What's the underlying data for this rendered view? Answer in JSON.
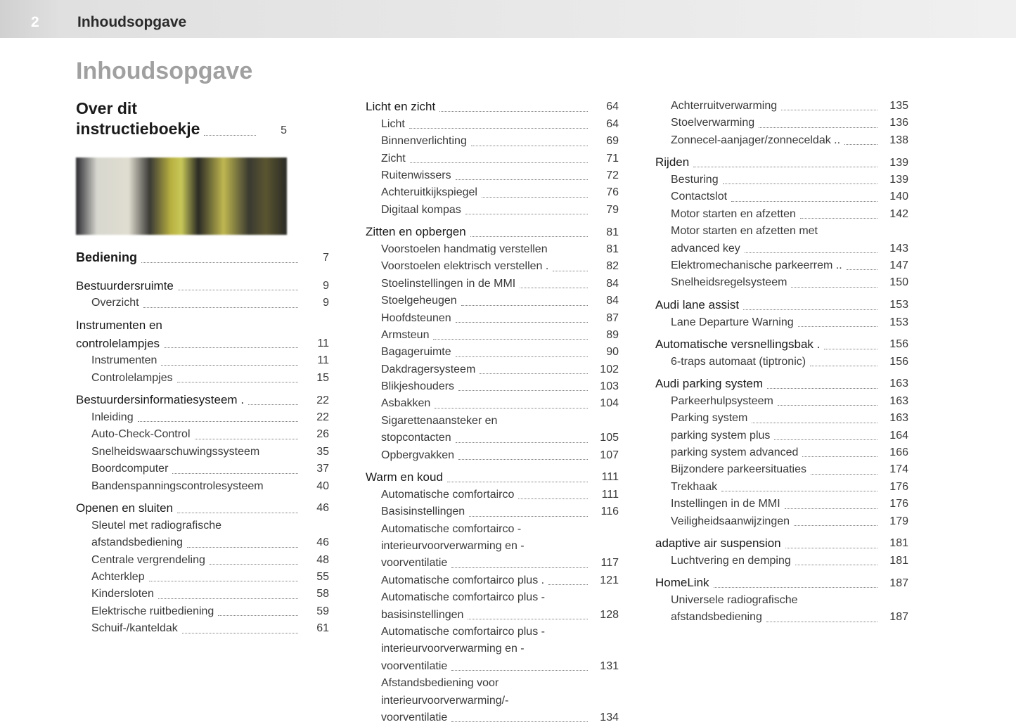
{
  "header": {
    "page_number": "2",
    "running_title": "Inhoudsopgave"
  },
  "main_title": "Inhoudsopgave",
  "col1": {
    "big_section": {
      "label_l1": "Over dit",
      "label_l2": "instructieboekje",
      "page": "5"
    },
    "sec2": {
      "label": "Bediening",
      "page": "7"
    },
    "entries2": [
      {
        "label": "Bestuurdersruimte",
        "page": "9",
        "bold": true
      },
      {
        "label": "Overzicht",
        "page": "9",
        "indent": true
      },
      {
        "label": "Instrumenten en",
        "wrap": true,
        "bold": true
      },
      {
        "label": "controlelampjes",
        "page": "11",
        "bold": true
      },
      {
        "label": "Instrumenten",
        "page": "11",
        "indent": true
      },
      {
        "label": "Controlelampjes",
        "page": "15",
        "indent": true
      },
      {
        "label": "Bestuurdersinformatiesysteem",
        "page": "22",
        "bold": true,
        "suffix": "."
      },
      {
        "label": "Inleiding",
        "page": "22",
        "indent": true
      },
      {
        "label": "Auto-Check-Control",
        "page": "26",
        "indent": true
      },
      {
        "label": "Snelheidswaarschuwingssysteem",
        "page": "35",
        "indent": true,
        "nodots": true
      },
      {
        "label": "Boordcomputer",
        "page": "37",
        "indent": true
      },
      {
        "label": "Bandenspanningscontrolesysteem",
        "page": "40",
        "indent": true,
        "nodots": true
      },
      {
        "label": "Openen en sluiten",
        "page": "46",
        "bold": true
      },
      {
        "label": "Sleutel met radiografische",
        "wrap": true,
        "indent": true
      },
      {
        "label": "afstandsbediening",
        "page": "46",
        "indent": true
      },
      {
        "label": "Centrale vergrendeling",
        "page": "48",
        "indent": true
      },
      {
        "label": "Achterklep",
        "page": "55",
        "indent": true
      },
      {
        "label": "Kindersloten",
        "page": "58",
        "indent": true
      },
      {
        "label": "Elektrische ruitbediening",
        "page": "59",
        "indent": true
      },
      {
        "label": "Schuif-/kanteldak",
        "page": "61",
        "indent": true
      }
    ]
  },
  "col2": {
    "entries": [
      {
        "label": "Licht en zicht",
        "page": "64",
        "bold": true
      },
      {
        "label": "Licht",
        "page": "64",
        "indent": true
      },
      {
        "label": "Binnenverlichting",
        "page": "69",
        "indent": true
      },
      {
        "label": "Zicht",
        "page": "71",
        "indent": true
      },
      {
        "label": "Ruitenwissers",
        "page": "72",
        "indent": true
      },
      {
        "label": "Achteruitkijkspiegel",
        "page": "76",
        "indent": true
      },
      {
        "label": "Digitaal kompas",
        "page": "79",
        "indent": true
      },
      {
        "label": "Zitten en opbergen",
        "page": "81",
        "bold": true
      },
      {
        "label": "Voorstoelen handmatig verstellen",
        "page": "81",
        "indent": true,
        "nodots": true
      },
      {
        "label": "Voorstoelen elektrisch verstellen",
        "page": "82",
        "indent": true,
        "suffix": "."
      },
      {
        "label": "Stoelinstellingen in de MMI",
        "page": "84",
        "indent": true
      },
      {
        "label": "Stoelgeheugen",
        "page": "84",
        "indent": true
      },
      {
        "label": "Hoofdsteunen",
        "page": "87",
        "indent": true
      },
      {
        "label": "Armsteun",
        "page": "89",
        "indent": true
      },
      {
        "label": "Bagageruimte",
        "page": "90",
        "indent": true
      },
      {
        "label": "Dakdragersysteem",
        "page": "102",
        "indent": true
      },
      {
        "label": "Blikjeshouders",
        "page": "103",
        "indent": true
      },
      {
        "label": "Asbakken",
        "page": "104",
        "indent": true
      },
      {
        "label": "Sigarettenaansteker en",
        "wrap": true,
        "indent": true
      },
      {
        "label": "stopcontacten",
        "page": "105",
        "indent": true
      },
      {
        "label": "Opbergvakken",
        "page": "107",
        "indent": true
      },
      {
        "label": "Warm en koud",
        "page": "111",
        "bold": true
      },
      {
        "label": "Automatische comfortairco",
        "page": "111",
        "indent": true
      },
      {
        "label": "Basisinstellingen",
        "page": "116",
        "indent": true
      },
      {
        "label": "Automatische comfortairco -",
        "wrap": true,
        "indent": true
      },
      {
        "label": "interieurvoorverwarming en -",
        "wrap": true,
        "indent": true
      },
      {
        "label": "voorventilatie",
        "page": "117",
        "indent": true
      },
      {
        "label": "Automatische comfortairco plus",
        "page": "121",
        "indent": true,
        "suffix": "."
      },
      {
        "label": "Automatische comfortairco plus -",
        "wrap": true,
        "indent": true
      },
      {
        "label": "basisinstellingen",
        "page": "128",
        "indent": true
      },
      {
        "label": "Automatische comfortairco plus -",
        "wrap": true,
        "indent": true
      },
      {
        "label": "interieurvoorverwarming en -",
        "wrap": true,
        "indent": true
      },
      {
        "label": "voorventilatie",
        "page": "131",
        "indent": true
      },
      {
        "label": "Afstandsbediening voor",
        "wrap": true,
        "indent": true
      },
      {
        "label": "interieurvoorverwarming/-",
        "wrap": true,
        "indent": true
      },
      {
        "label": "voorventilatie",
        "page": "134",
        "indent": true
      }
    ]
  },
  "col3": {
    "entries": [
      {
        "label": "Achterruitverwarming",
        "page": "135",
        "indent": true
      },
      {
        "label": "Stoelverwarming",
        "page": "136",
        "indent": true
      },
      {
        "label": "Zonnecel-aanjager/zonneceldak",
        "page": "138",
        "indent": true,
        "suffix": ".."
      },
      {
        "label": "Rijden",
        "page": "139",
        "bold": true
      },
      {
        "label": "Besturing",
        "page": "139",
        "indent": true
      },
      {
        "label": "Contactslot",
        "page": "140",
        "indent": true
      },
      {
        "label": "Motor starten en afzetten",
        "page": "142",
        "indent": true
      },
      {
        "label": "Motor starten en afzetten met",
        "wrap": true,
        "indent": true
      },
      {
        "label": "advanced key",
        "page": "143",
        "indent": true
      },
      {
        "label": "Elektromechanische parkeerrem",
        "page": "147",
        "indent": true,
        "suffix": ".."
      },
      {
        "label": "Snelheidsregelsysteem",
        "page": "150",
        "indent": true
      },
      {
        "label": "Audi lane assist",
        "page": "153",
        "bold": true
      },
      {
        "label": "Lane Departure Warning",
        "page": "153",
        "indent": true
      },
      {
        "label": "Automatische versnellingsbak",
        "page": "156",
        "bold": true,
        "suffix": "."
      },
      {
        "label": "6-traps automaat (tiptronic)",
        "page": "156",
        "indent": true
      },
      {
        "label": "Audi parking system",
        "page": "163",
        "bold": true
      },
      {
        "label": "Parkeerhulpsysteem",
        "page": "163",
        "indent": true
      },
      {
        "label": "Parking system",
        "page": "163",
        "indent": true
      },
      {
        "label": "parking system plus",
        "page": "164",
        "indent": true
      },
      {
        "label": "parking system advanced",
        "page": "166",
        "indent": true
      },
      {
        "label": "Bijzondere parkeersituaties",
        "page": "174",
        "indent": true
      },
      {
        "label": "Trekhaak",
        "page": "176",
        "indent": true
      },
      {
        "label": "Instellingen in de MMI",
        "page": "176",
        "indent": true
      },
      {
        "label": "Veiligheidsaanwijzingen",
        "page": "179",
        "indent": true
      },
      {
        "label": "adaptive air suspension",
        "page": "181",
        "bold": true
      },
      {
        "label": "Luchtvering en demping",
        "page": "181",
        "indent": true
      },
      {
        "label": "HomeLink",
        "page": "187",
        "bold": true
      },
      {
        "label": "Universele radiografische",
        "wrap": true,
        "indent": true
      },
      {
        "label": "afstandsbediening",
        "page": "187",
        "indent": true
      }
    ]
  }
}
